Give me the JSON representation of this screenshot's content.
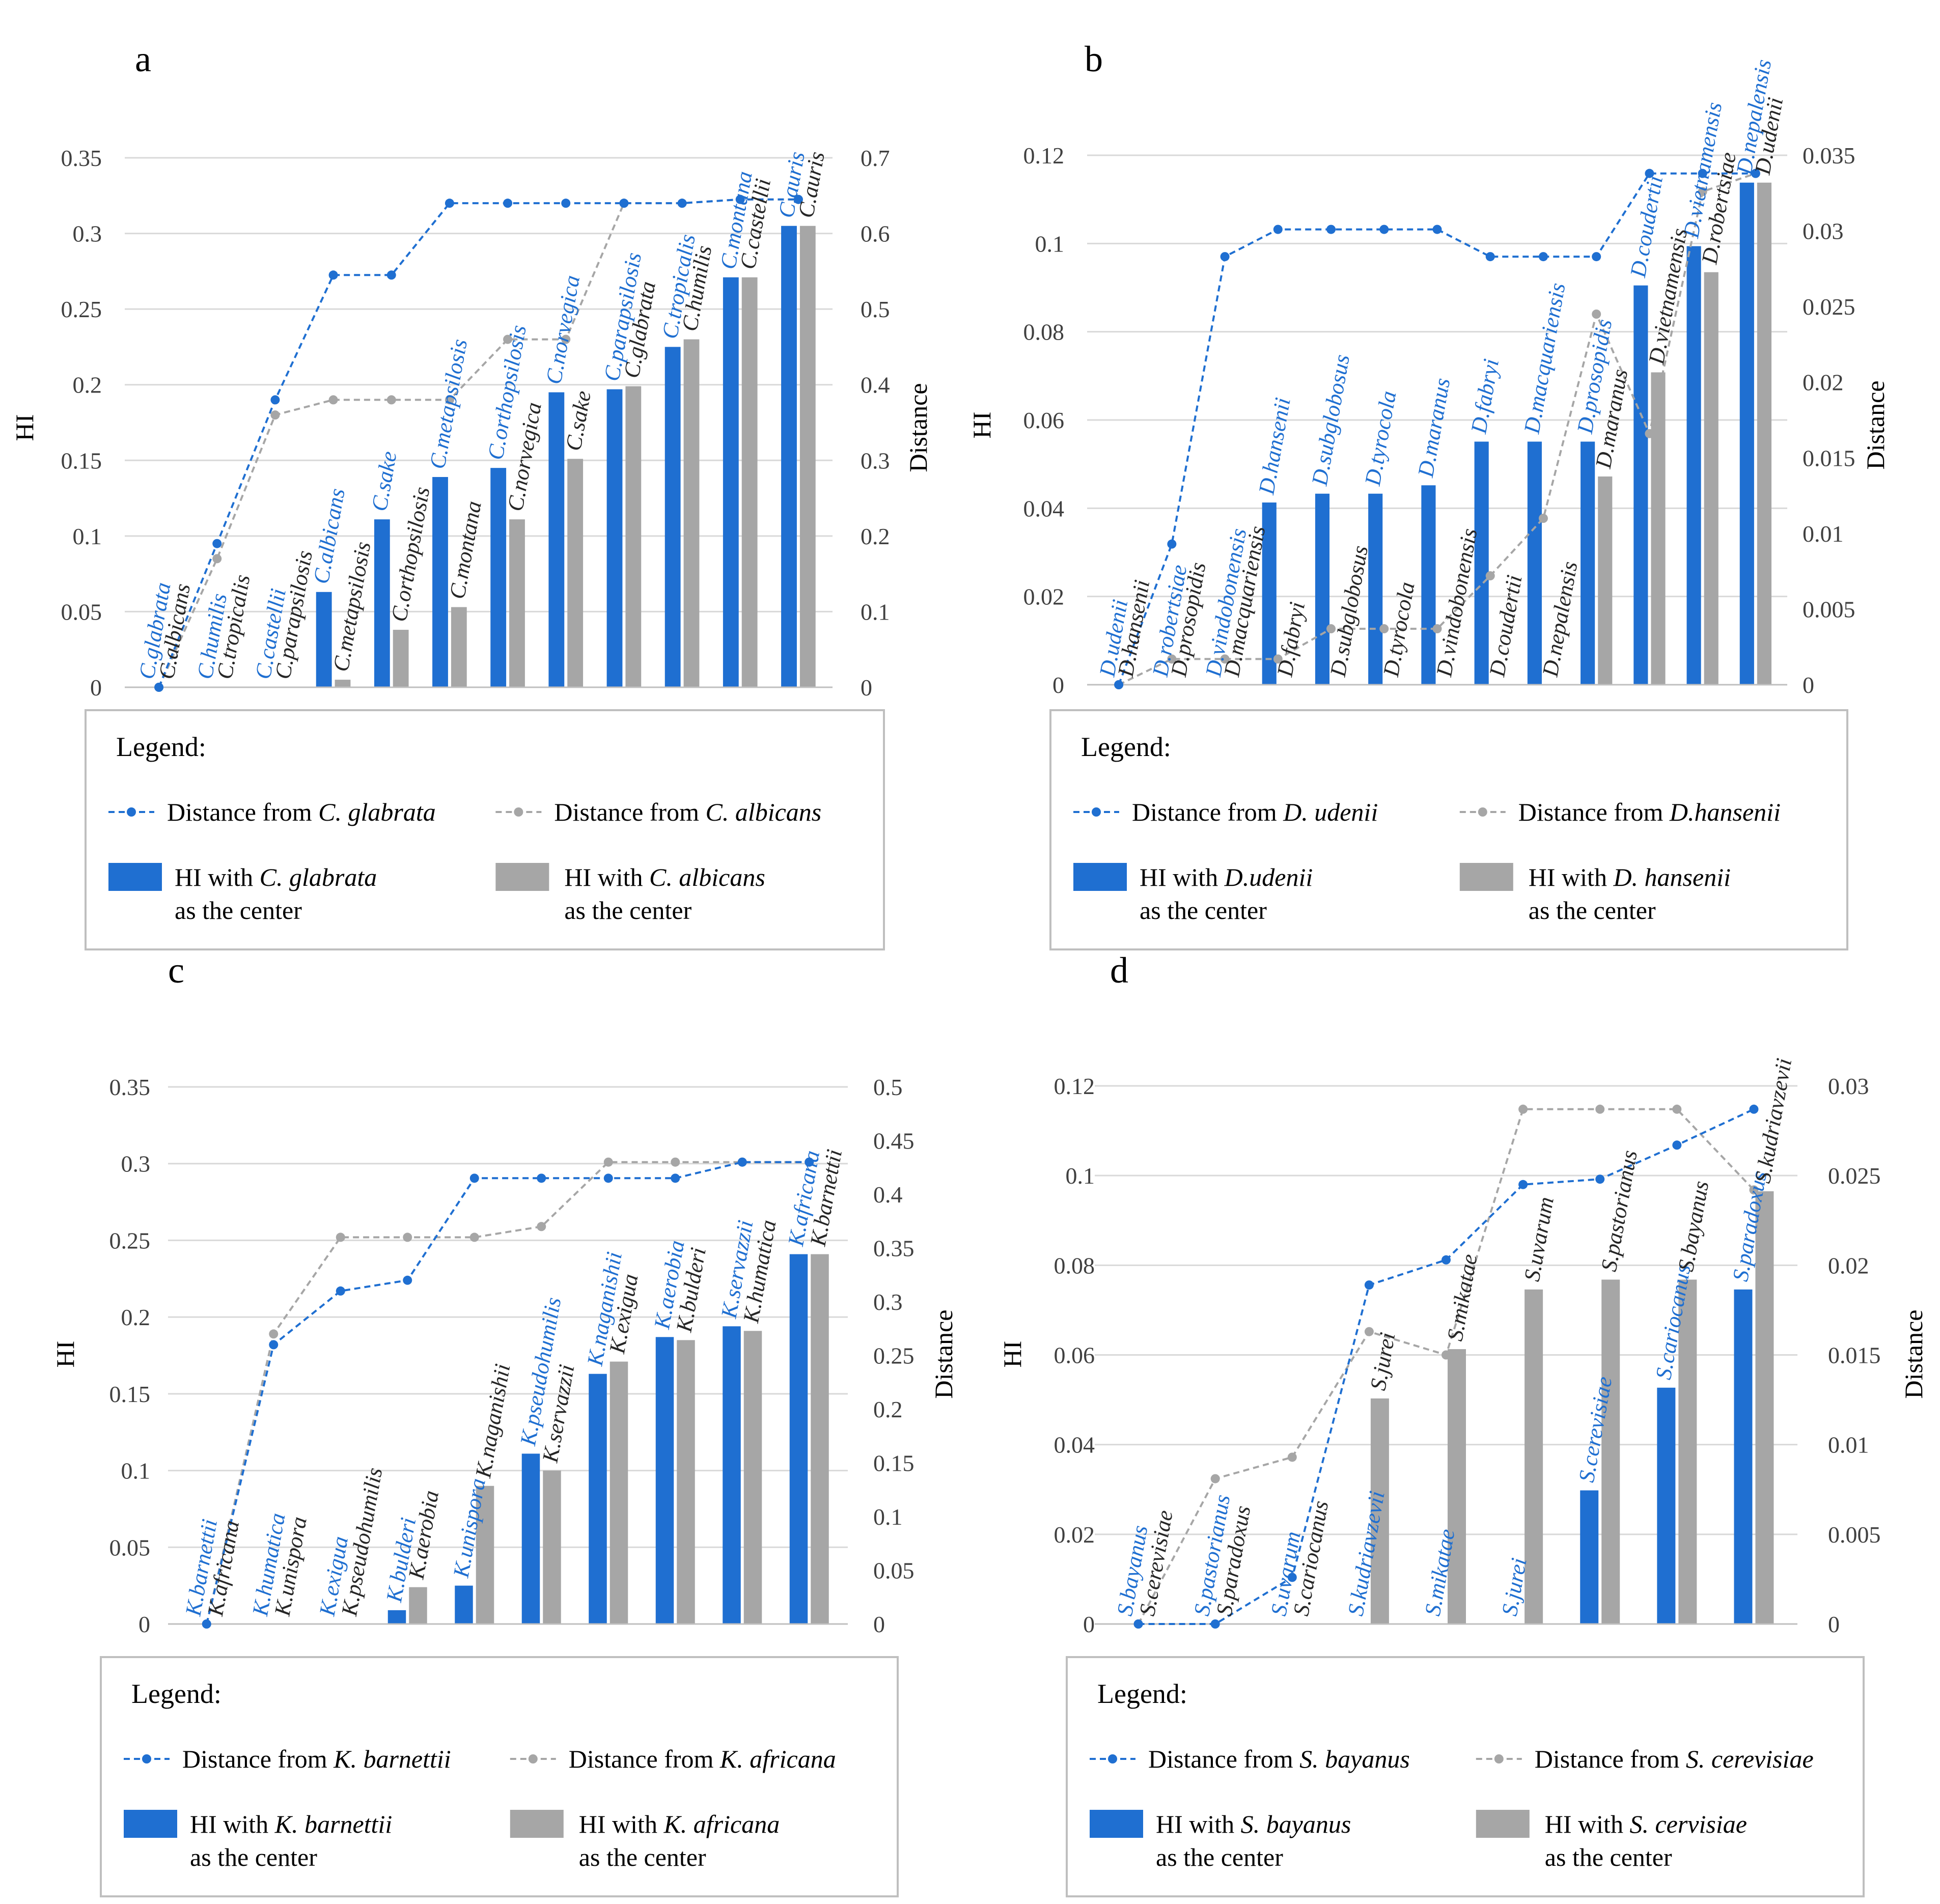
{
  "figure": {
    "colors": {
      "blue": "#1f6fd1",
      "gray": "#a6a6a6",
      "axis_text": "#404040",
      "grid": "#d9d9d9",
      "frame": "#bfbfbf"
    },
    "legend_title": "Legend:",
    "center_suffix": "as the center"
  },
  "chart_data": [
    {
      "panel": "a",
      "type": "bar+line",
      "y_left": {
        "label": "HI",
        "min": 0,
        "max": 0.35,
        "ticks": [
          "0",
          "0.05",
          "0.1",
          "0.15",
          "0.2",
          "0.25",
          "0.3",
          "0.35"
        ]
      },
      "y_right": {
        "label": "Distance",
        "min": 0,
        "max": 0.7,
        "ticks": [
          "0",
          "0.1",
          "0.2",
          "0.3",
          "0.4",
          "0.5",
          "0.6",
          "0.7"
        ]
      },
      "blue_labels": [
        "C.glabrata",
        "C.humilis",
        "C.castellii",
        "C.albicans",
        "C.sake",
        "C.metapsilosis",
        "C.orthopsilosis",
        "C.norvegica",
        "C.parapsilosis",
        "C.tropicalis",
        "C.montana",
        "C.auris"
      ],
      "gray_labels": [
        "C.albicans",
        "C.tropicalis",
        "C.parapsilosis",
        "C.metapsilosis",
        "C.orthopsilosis",
        "C.montana",
        "C.norvegica",
        "C.sake",
        "C.glabrata",
        "C.humilis",
        "C.castellii",
        "C.auris"
      ],
      "series": [
        {
          "name": "HI with C. glabrata as the center",
          "kind": "bar",
          "color": "blue",
          "values": [
            null,
            null,
            null,
            0.063,
            0.111,
            0.139,
            0.145,
            0.195,
            0.197,
            0.225,
            0.271,
            0.305
          ]
        },
        {
          "name": "HI with C. albicans as the center",
          "kind": "bar",
          "color": "gray",
          "values": [
            null,
            null,
            null,
            0.005,
            0.038,
            0.053,
            0.111,
            0.151,
            0.199,
            0.23,
            0.271,
            0.305
          ]
        },
        {
          "name": "Distance from C. glabrata",
          "kind": "line",
          "color": "blue",
          "values": [
            0,
            0.19,
            0.38,
            0.545,
            0.545,
            0.64,
            0.64,
            0.64,
            0.64,
            0.64,
            0.645,
            0.645
          ]
        },
        {
          "name": "Distance from C. albicans",
          "kind": "line",
          "color": "gray",
          "values": [
            0,
            0.17,
            0.36,
            0.38,
            0.38,
            0.38,
            0.46,
            0.46,
            0.64,
            0.64,
            0.645,
            0.645
          ]
        }
      ],
      "legend": {
        "dist_blue": [
          "Distance from ",
          "C. glabrata"
        ],
        "dist_gray": [
          "Distance from ",
          "C. albicans"
        ],
        "hi_blue": [
          "HI with ",
          "C. glabrata"
        ],
        "hi_gray": [
          "HI with ",
          "C. albicans"
        ]
      }
    },
    {
      "panel": "b",
      "type": "bar+line",
      "y_left": {
        "label": "HI",
        "min": 0,
        "max": 0.12,
        "ticks": [
          "0",
          "0.02",
          "0.04",
          "0.06",
          "0.08",
          "0.1",
          "0.12"
        ]
      },
      "y_right": {
        "label": "Distance",
        "min": 0,
        "max": 0.035,
        "ticks": [
          "0",
          "0.005",
          "0.01",
          "0.015",
          "0.02",
          "0.025",
          "0.03",
          "0.035"
        ]
      },
      "blue_labels": [
        "D.udenii",
        "D.robertsiae",
        "D.vindobonensis",
        "D.hansenii",
        "D.subglobosus",
        "D.tyrocola",
        "D.maranus",
        "D.fabryi",
        "D.macquariensis",
        "D.prosopidis",
        "D.coudertii",
        "D.vietnamensis",
        "D.nepalensis"
      ],
      "gray_labels": [
        "D.hansenii",
        "D.prosopidis",
        "D.macquariensis",
        "D.fabryi",
        "D.subglobosus",
        "D.tyrocola",
        "D.vindobonensis",
        "D.coudertii",
        "D.nepalensis",
        "D.maranus",
        "D.vietnamensis",
        "D.robertsiae",
        "D.udenii"
      ],
      "series": [
        {
          "name": "HI with D.udenii as the center",
          "kind": "bar",
          "color": "blue",
          "values": [
            null,
            null,
            null,
            0.0413,
            0.0433,
            0.0433,
            0.0452,
            0.0551,
            0.0551,
            0.0551,
            0.0905,
            0.0994,
            0.1138
          ]
        },
        {
          "name": "HI with D. hansenii as the center",
          "kind": "bar",
          "color": "gray",
          "values": [
            null,
            null,
            null,
            null,
            null,
            null,
            null,
            null,
            null,
            0.0472,
            0.0708,
            0.0935,
            0.1138
          ]
        },
        {
          "name": "Distance from D. udenii",
          "kind": "line",
          "color": "blue",
          "values": [
            0,
            0.0093,
            0.0283,
            0.0301,
            0.0301,
            0.0301,
            0.0301,
            0.0283,
            0.0283,
            0.0283,
            0.0338,
            0.0338,
            0.0338
          ]
        },
        {
          "name": "Distance from D.hansenii",
          "kind": "line",
          "color": "gray",
          "values": [
            0,
            0.0017,
            0.0017,
            0.0017,
            0.0037,
            0.0037,
            0.0037,
            0.0072,
            0.011,
            0.0245,
            0.0166,
            0.0326,
            0.0338
          ]
        }
      ],
      "legend": {
        "dist_blue": [
          "Distance from ",
          "D. udenii"
        ],
        "dist_gray": [
          "Distance from ",
          "D.hansenii"
        ],
        "hi_blue": [
          "HI with ",
          "D.udenii"
        ],
        "hi_gray": [
          "HI with ",
          "D. hansenii"
        ]
      }
    },
    {
      "panel": "c",
      "type": "bar+line",
      "y_left": {
        "label": "HI",
        "min": 0,
        "max": 0.35,
        "ticks": [
          "0",
          "0.05",
          "0.1",
          "0.15",
          "0.2",
          "0.25",
          "0.3",
          "0.35"
        ]
      },
      "y_right": {
        "label": "Distance",
        "min": 0,
        "max": 0.5,
        "ticks": [
          "0",
          "0.05",
          "0.1",
          "0.15",
          "0.2",
          "0.25",
          "0.3",
          "0.35",
          "0.4",
          "0.45",
          "0.5"
        ]
      },
      "blue_labels": [
        "K.barnettii",
        "K.humatica",
        "K.exigua",
        "K.bulderi",
        "K.unispora",
        "K.pseudohumilis",
        "K.naganishii",
        "K.aerobia",
        "K.servazzii",
        "K.africana"
      ],
      "gray_labels": [
        "K.africana",
        "K.unispora",
        "K.pseudohumilis",
        "K.aerobia",
        "K.naganishii",
        "K.servazzii",
        "K.exigua",
        "K.bulderi",
        "K.humatica",
        "K.barnettii"
      ],
      "series": [
        {
          "name": "HI with K. barnettii as the center",
          "kind": "bar",
          "color": "blue",
          "values": [
            null,
            null,
            null,
            0.009,
            0.025,
            0.111,
            0.163,
            0.187,
            0.194,
            0.241
          ]
        },
        {
          "name": "HI with K. africana as the center",
          "kind": "bar",
          "color": "gray",
          "values": [
            null,
            null,
            null,
            0.024,
            0.09,
            0.1,
            0.171,
            0.185,
            0.191,
            0.241
          ]
        },
        {
          "name": "Distance from K. barnettii",
          "kind": "line",
          "color": "blue",
          "values": [
            0,
            0.26,
            0.31,
            0.32,
            0.415,
            0.415,
            0.415,
            0.415,
            0.43,
            0.43
          ]
        },
        {
          "name": "Distance from K. africana",
          "kind": "line",
          "color": "gray",
          "values": [
            0,
            0.27,
            0.36,
            0.36,
            0.36,
            0.37,
            0.43,
            0.43,
            0.43,
            0.43
          ]
        }
      ],
      "legend": {
        "dist_blue": [
          "Distance from ",
          "K. barnettii"
        ],
        "dist_gray": [
          "Distance from ",
          "K. africana"
        ],
        "hi_blue": [
          "HI with ",
          "K. barnettii"
        ],
        "hi_gray": [
          "HI with ",
          "K. africana"
        ]
      }
    },
    {
      "panel": "d",
      "type": "bar+line",
      "y_left": {
        "label": "HI",
        "min": 0,
        "max": 0.12,
        "ticks": [
          "0",
          "0.02",
          "0.04",
          "0.06",
          "0.08",
          "0.1",
          "0.12"
        ]
      },
      "y_right": {
        "label": "Distance",
        "min": 0,
        "max": 0.03,
        "ticks": [
          "0",
          "0.005",
          "0.01",
          "0.015",
          "0.02",
          "0.025",
          "0.03"
        ]
      },
      "blue_labels": [
        "S.bayanus",
        "S.pastorianus",
        "S.uvarum",
        "S.kudriavzevii",
        "S.mikatae",
        "S.jurei",
        "S.cerevisiae",
        "S.cariocanus",
        "S.paradoxus"
      ],
      "gray_labels": [
        "S.cerevisiae",
        "S.paradoxus",
        "S.cariocanus",
        "S.jurei",
        "S.mikatae",
        "S.uvarum",
        "S.pastorianus",
        "S.bayanus",
        "S.kudriavzevii"
      ],
      "series": [
        {
          "name": "HI with S. bayanus as the center",
          "kind": "bar",
          "color": "blue",
          "values": [
            null,
            null,
            null,
            null,
            null,
            null,
            0.0298,
            0.0527,
            0.0746
          ]
        },
        {
          "name": "HI with S. cervisiae as the center",
          "kind": "bar",
          "color": "gray",
          "values": [
            null,
            null,
            null,
            0.0503,
            0.0613,
            0.0746,
            0.0768,
            0.0768,
            0.0965
          ]
        },
        {
          "name": "Distance from S. bayanus",
          "kind": "line",
          "color": "blue",
          "values": [
            0,
            0,
            0.0026,
            0.0189,
            0.0203,
            0.0245,
            0.0248,
            0.0267,
            0.0287
          ]
        },
        {
          "name": "Distance from S. cerevisiae",
          "kind": "line",
          "color": "gray",
          "values": [
            0,
            0.0081,
            0.0093,
            0.0163,
            0.015,
            0.0287,
            0.0287,
            0.0287,
            0.0242
          ]
        }
      ],
      "legend": {
        "dist_blue": [
          "Distance from ",
          "S. bayanus"
        ],
        "dist_gray": [
          "Distance from ",
          "S. cerevisiae"
        ],
        "hi_blue": [
          "HI with ",
          "S. bayanus"
        ],
        "hi_gray": [
          "HI with ",
          "S. cervisiae"
        ]
      }
    }
  ]
}
